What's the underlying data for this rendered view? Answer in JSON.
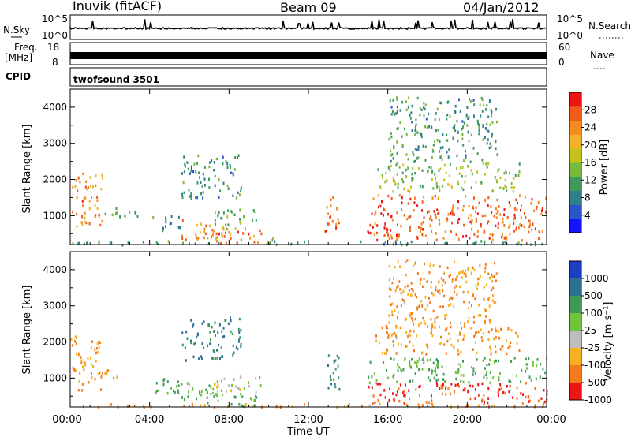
{
  "header": {
    "station": "Inuvik (fitACF)",
    "beam": "Beam 09",
    "date": "04/Jan/2012"
  },
  "strip_panels": {
    "nsky_label": "N.Sky",
    "nsky_ticks": [
      "10^5",
      "10^0"
    ],
    "nsearch_label": "N.Search",
    "nsearch_ticks": [
      "10^5",
      "10^0"
    ],
    "freq_label": "Freq.",
    "freq_unit": "[MHz]",
    "freq_ticks": [
      "18",
      "8"
    ],
    "nave_label": "Nave",
    "nave_ticks": [
      "60",
      "0"
    ],
    "cpid_label": "CPID",
    "cpid_value": "twofsound 3501"
  },
  "chart_data": [
    {
      "type": "heatmap",
      "name": "power-panel",
      "ylabel": "Slant Range [km]",
      "yticks": [
        1000,
        2000,
        3000,
        4000
      ],
      "ylim": [
        200,
        4500
      ],
      "xlim_hours": [
        0,
        24
      ],
      "colorbar": {
        "label": "Power [dB]",
        "ticks": [
          4,
          8,
          12,
          16,
          20,
          24,
          28
        ],
        "range": [
          0,
          32
        ],
        "colors": [
          "#1414ff",
          "#2a56c8",
          "#2f7f8a",
          "#3e9a5c",
          "#79b93a",
          "#c6c21c",
          "#f2b22a",
          "#f58c1e",
          "#f05a1a",
          "#ee1515"
        ]
      },
      "scatter_regions": [
        {
          "start_h": 0.0,
          "end_h": 1.6,
          "range_min_km": 700,
          "range_max_km": 2200,
          "value": 24
        },
        {
          "start_h": 0.0,
          "end_h": 24.0,
          "range_min_km": 220,
          "range_max_km": 330,
          "value": 10
        },
        {
          "start_h": 1.7,
          "end_h": 2.5,
          "range_min_km": 1000,
          "range_max_km": 1250,
          "value": 14
        },
        {
          "start_h": 2.7,
          "end_h": 3.6,
          "range_min_km": 1000,
          "range_max_km": 1150,
          "value": 12
        },
        {
          "start_h": 4.1,
          "end_h": 5.5,
          "range_min_km": 600,
          "range_max_km": 1050,
          "value": 10
        },
        {
          "start_h": 5.3,
          "end_h": 7.8,
          "range_min_km": 350,
          "range_max_km": 950,
          "value": 24
        },
        {
          "start_h": 7.0,
          "end_h": 9.6,
          "range_min_km": 250,
          "range_max_km": 650,
          "value": 27
        },
        {
          "start_h": 7.0,
          "end_h": 9.4,
          "range_min_km": 650,
          "range_max_km": 1200,
          "value": 15
        },
        {
          "start_h": 5.6,
          "end_h": 8.6,
          "range_min_km": 1500,
          "range_max_km": 2700,
          "value": 9
        },
        {
          "start_h": 9.6,
          "end_h": 10.4,
          "range_min_km": 250,
          "range_max_km": 500,
          "value": 14
        },
        {
          "start_h": 12.8,
          "end_h": 13.6,
          "range_min_km": 600,
          "range_max_km": 1700,
          "value": 26
        },
        {
          "start_h": 14.9,
          "end_h": 24.0,
          "range_min_km": 350,
          "range_max_km": 1600,
          "value": 27
        },
        {
          "start_h": 15.3,
          "end_h": 22.6,
          "range_min_km": 1700,
          "range_max_km": 2500,
          "value": 15
        },
        {
          "start_h": 16.0,
          "end_h": 21.5,
          "range_min_km": 2500,
          "range_max_km": 4300,
          "value": 11
        }
      ]
    },
    {
      "type": "heatmap",
      "name": "velocity-panel",
      "ylabel": "Slant Range [km]",
      "yticks": [
        1000,
        2000,
        3000,
        4000
      ],
      "ylim": [
        200,
        4500
      ],
      "xlim_hours": [
        0,
        24
      ],
      "xticks": [
        "00:00",
        "04:00",
        "08:00",
        "12:00",
        "16:00",
        "20:00",
        "00:00"
      ],
      "xlabel": "Time UT",
      "colorbar": {
        "label": "Velocity [m s⁻¹]",
        "ticks": [
          "1000",
          "500",
          "100",
          "25",
          "-25",
          "-100",
          "-500",
          "-1000"
        ],
        "colors": [
          "#1d3fc4",
          "#2f6f8f",
          "#3d9a58",
          "#72c33c",
          "#bdbdbd",
          "#f5b21e",
          "#f47a1c",
          "#ee1515"
        ]
      },
      "scatter_regions": [
        {
          "start_h": 0.0,
          "end_h": 1.6,
          "range_min_km": 700,
          "range_max_km": 2200,
          "value": -100
        },
        {
          "start_h": 0.0,
          "end_h": 24.0,
          "range_min_km": 220,
          "range_max_km": 330,
          "value": -100
        },
        {
          "start_h": 1.7,
          "end_h": 2.5,
          "range_min_km": 1000,
          "range_max_km": 1250,
          "value": -100
        },
        {
          "start_h": 4.1,
          "end_h": 5.5,
          "range_min_km": 600,
          "range_max_km": 1050,
          "value": 100
        },
        {
          "start_h": 5.3,
          "end_h": 7.8,
          "range_min_km": 350,
          "range_max_km": 950,
          "value": 100
        },
        {
          "start_h": 7.0,
          "end_h": 9.6,
          "range_min_km": 600,
          "range_max_km": 1100,
          "value": 0
        },
        {
          "start_h": 7.0,
          "end_h": 9.6,
          "range_min_km": 250,
          "range_max_km": 600,
          "value": 100
        },
        {
          "start_h": 5.6,
          "end_h": 8.6,
          "range_min_km": 1500,
          "range_max_km": 2700,
          "value": 500
        },
        {
          "start_h": 12.8,
          "end_h": 13.6,
          "range_min_km": 600,
          "range_max_km": 1700,
          "value": 500
        },
        {
          "start_h": 14.9,
          "end_h": 24.0,
          "range_min_km": 900,
          "range_max_km": 1600,
          "value": 100
        },
        {
          "start_h": 14.9,
          "end_h": 24.0,
          "range_min_km": 350,
          "range_max_km": 900,
          "value": -500
        },
        {
          "start_h": 15.3,
          "end_h": 22.6,
          "range_min_km": 1700,
          "range_max_km": 2500,
          "value": -100
        },
        {
          "start_h": 16.0,
          "end_h": 21.5,
          "range_min_km": 2500,
          "range_max_km": 4300,
          "value": -100
        }
      ]
    }
  ]
}
